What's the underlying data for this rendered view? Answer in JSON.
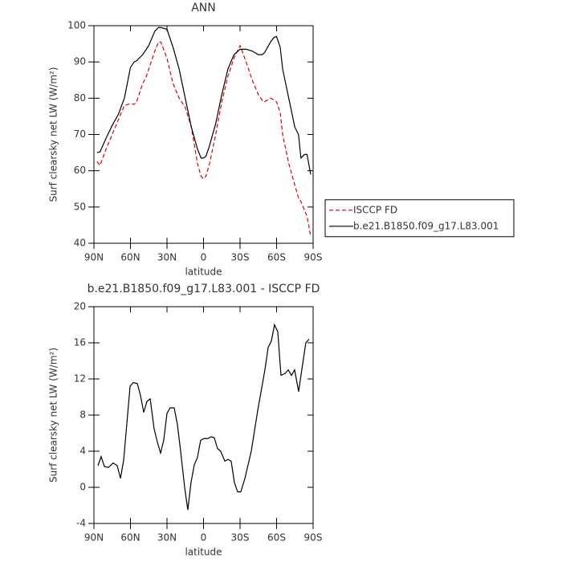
{
  "chart_data": [
    {
      "type": "line",
      "title": "ANN",
      "xlabel": "latitude",
      "ylabel": "Surf clearsky net LW (W/m²)",
      "x": [
        87.5,
        85,
        80,
        75,
        70,
        65,
        60,
        57,
        55,
        50,
        47,
        45,
        40,
        37,
        35,
        30,
        25,
        20,
        15,
        10,
        5,
        2,
        0,
        -2,
        -5,
        -10,
        -15,
        -20,
        -25,
        -30,
        -35,
        -40,
        -45,
        -48,
        -50,
        -55,
        -58,
        -60,
        -63,
        -65,
        -70,
        -75,
        -78,
        -80,
        -83,
        -85,
        -88
      ],
      "series": [
        {
          "name": "ISCCP FD",
          "color": "#e00000",
          "dashed": true,
          "values": [
            62.5,
            61.5,
            66,
            70,
            74,
            78,
            78.5,
            78.3,
            79,
            84,
            86,
            88,
            93,
            95.5,
            95.5,
            91,
            84,
            80,
            77.5,
            72,
            62,
            58.5,
            57.8,
            58.5,
            62,
            70,
            79,
            86,
            91,
            94.5,
            90,
            85,
            81,
            79.5,
            79,
            80,
            79.5,
            79,
            76,
            70,
            62,
            56,
            52.5,
            51.5,
            49,
            47.5,
            42
          ]
        },
        {
          "name": "b.e21.B1850.f09_g17.L83.001",
          "color": "#000000",
          "dashed": false,
          "values": [
            65,
            65.2,
            69,
            72.5,
            75.5,
            80,
            88.5,
            90,
            90.3,
            92,
            93.5,
            94.5,
            98.5,
            99.5,
            99.5,
            99,
            94,
            88,
            80,
            72,
            66,
            63.5,
            63.5,
            64,
            67,
            73,
            81,
            88,
            92,
            93.5,
            93.5,
            93,
            92,
            92,
            92.5,
            95.5,
            96.8,
            97,
            94,
            88,
            80,
            72,
            70,
            63.5,
            64.5,
            64.5,
            59
          ]
        }
      ],
      "xlim": [
        90,
        -90
      ],
      "xticks": [
        {
          "value": 90,
          "label": "90N"
        },
        {
          "value": 60,
          "label": "60N"
        },
        {
          "value": 30,
          "label": "30N"
        },
        0,
        {
          "value": -30,
          "label": "30S"
        },
        {
          "value": -60,
          "label": "60S"
        },
        {
          "value": -90,
          "label": "90S"
        }
      ],
      "ylim": [
        40,
        100
      ],
      "yticks": [
        40,
        50,
        60,
        70,
        80,
        90,
        100
      ],
      "legend": "right"
    },
    {
      "type": "line",
      "title": "b.e21.B1850.f09_g17.L83.001 - ISCCP FD",
      "xlabel": "latitude",
      "ylabel": "Surf clearsky net LW (W/m²)",
      "x": [
        86.7,
        84.1,
        81.4,
        78.1,
        74.2,
        70.9,
        68.2,
        65.6,
        63.0,
        60.3,
        57.7,
        54.4,
        51.8,
        49.1,
        46.5,
        43.8,
        40.6,
        37.9,
        35.3,
        32.7,
        30.0,
        27.4,
        24.1,
        21.5,
        18.8,
        15.5,
        12.9,
        10.3,
        7.6,
        5.0,
        2.4,
        -0.3,
        -3.6,
        -6.2,
        -8.8,
        -11.5,
        -14.1,
        -17.5,
        -20.1,
        -22.7,
        -25.4,
        -28.0,
        -30.6,
        -34.0,
        -39.2,
        -44.5,
        -50.4,
        -53.1,
        -55.7,
        -58.3,
        -61.0,
        -63.6,
        -66.9,
        -69.6,
        -72.2,
        -74.8,
        -78.1,
        -80.7,
        -84.0,
        -86.7
      ],
      "series": [
        {
          "color": "#000000",
          "dashed": false,
          "values": [
            2.4,
            3.4,
            2.3,
            2.2,
            2.7,
            2.4,
            1.0,
            3.0,
            7,
            11.2,
            11.6,
            11.5,
            10.2,
            8.3,
            9.5,
            9.8,
            6.5,
            5,
            3.8,
            5.2,
            8.2,
            8.8,
            8.8,
            7,
            4,
            0,
            -2.5,
            0.5,
            2.5,
            3.3,
            5.2,
            5.4,
            5.4,
            5.6,
            5.5,
            4.3,
            4,
            2.9,
            3.1,
            2.9,
            0.5,
            -0.5,
            -0.5,
            1.0,
            4.0,
            8.5,
            13,
            15.5,
            16.2,
            18,
            17.2,
            12.4,
            12.6,
            13,
            12.4,
            13,
            10.6,
            13,
            16,
            16.4
          ]
        }
      ],
      "xlim": [
        90,
        -90
      ],
      "xticks": [
        {
          "value": 90,
          "label": "90N"
        },
        {
          "value": 60,
          "label": "60N"
        },
        {
          "value": 30,
          "label": "30N"
        },
        0,
        {
          "value": -30,
          "label": "30S"
        },
        {
          "value": -60,
          "label": "60S"
        },
        {
          "value": -90,
          "label": "90S"
        }
      ],
      "ylim": [
        -4,
        20
      ],
      "yticks": [
        -4,
        0,
        4,
        8,
        12,
        16,
        20
      ]
    }
  ]
}
